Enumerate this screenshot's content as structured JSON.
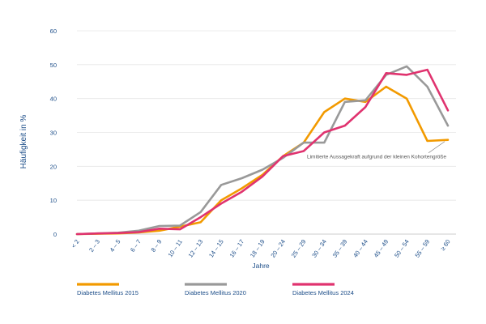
{
  "colors": {
    "axis_text": "#1d4e89",
    "grid": "#e6e6e6",
    "baseline": "#bbbbbb"
  },
  "chart_data": {
    "type": "line",
    "title": "",
    "xlabel": "Jahre",
    "ylabel": "Häufigkeit in %",
    "ylim": [
      0,
      60
    ],
    "yticks": [
      0,
      10,
      20,
      30,
      40,
      50,
      60
    ],
    "grid": true,
    "legend_position": "bottom",
    "categories": [
      "< 2",
      "2 – 3",
      "4 – 5",
      "6 – 7",
      "8 – 9",
      "10 – 11",
      "12 – 13",
      "14 – 15",
      "16 – 17",
      "18 – 19",
      "20 – 24",
      "25 – 29",
      "30 – 34",
      "35 – 39",
      "40 – 44",
      "45 – 49",
      "50 – 54",
      "55 – 59",
      "≥ 60"
    ],
    "series": [
      {
        "name": "Diabetes Mellitus 2015",
        "color": "#f29a00",
        "values": [
          0,
          0.1,
          0.2,
          0.5,
          1.0,
          2.2,
          3.5,
          10.0,
          13.5,
          17.5,
          23.0,
          27.0,
          36.0,
          40.0,
          39.0,
          43.5,
          40.0,
          27.5,
          27.8
        ]
      },
      {
        "name": "Diabetes Mellitus 2020",
        "color": "#999999",
        "values": [
          0,
          0.2,
          0.4,
          1.0,
          2.4,
          2.5,
          6.5,
          14.5,
          16.5,
          19.0,
          22.5,
          27.0,
          27.0,
          39.0,
          39.5,
          47.0,
          49.5,
          43.5,
          32.0
        ]
      },
      {
        "name": "Diabetes Mellitus 2024",
        "color": "#e0336f",
        "values": [
          0,
          0.2,
          0.3,
          0.6,
          1.6,
          1.4,
          5.0,
          9.0,
          12.5,
          17.0,
          23.0,
          24.5,
          30.0,
          32.0,
          37.5,
          47.5,
          47.0,
          48.5,
          36.5
        ]
      }
    ],
    "annotations": [
      {
        "text": "Limitierte Aussagekraft aufgrund der kleinen Kohortengröße",
        "category": "≥ 60",
        "value": 27.8
      }
    ]
  }
}
